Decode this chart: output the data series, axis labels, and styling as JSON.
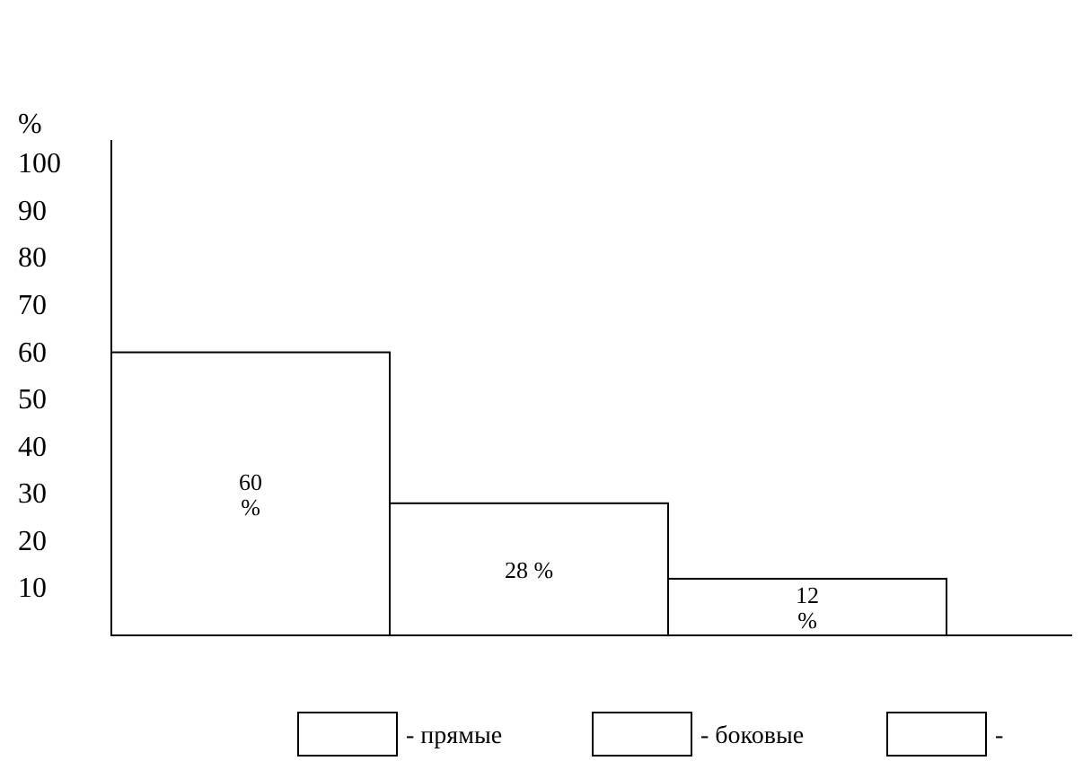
{
  "chart_data": {
    "type": "bar",
    "ylabel": "%",
    "categories": [
      null,
      null,
      null,
      null
    ],
    "series": [
      {
        "name": "- прямые",
        "color": "#ffffff",
        "values": [
          60,
          null,
          null,
          null
        ],
        "value_labels": [
          "60\n%",
          null,
          null,
          null
        ]
      },
      {
        "name": "- боковые",
        "color": "#ffffff",
        "values": [
          null,
          28,
          null,
          null
        ],
        "value_labels": [
          null,
          "28 %",
          null,
          null
        ]
      },
      {
        "name": "-",
        "color": "#ffffff",
        "values": [
          null,
          null,
          12,
          null
        ],
        "value_labels": [
          null,
          null,
          "12\n%",
          null
        ]
      }
    ],
    "ylim": [
      0,
      105
    ],
    "yticks": [
      10,
      20,
      30,
      40,
      50,
      60,
      70,
      80,
      90,
      100
    ],
    "grid": false,
    "legend": "bottom"
  }
}
